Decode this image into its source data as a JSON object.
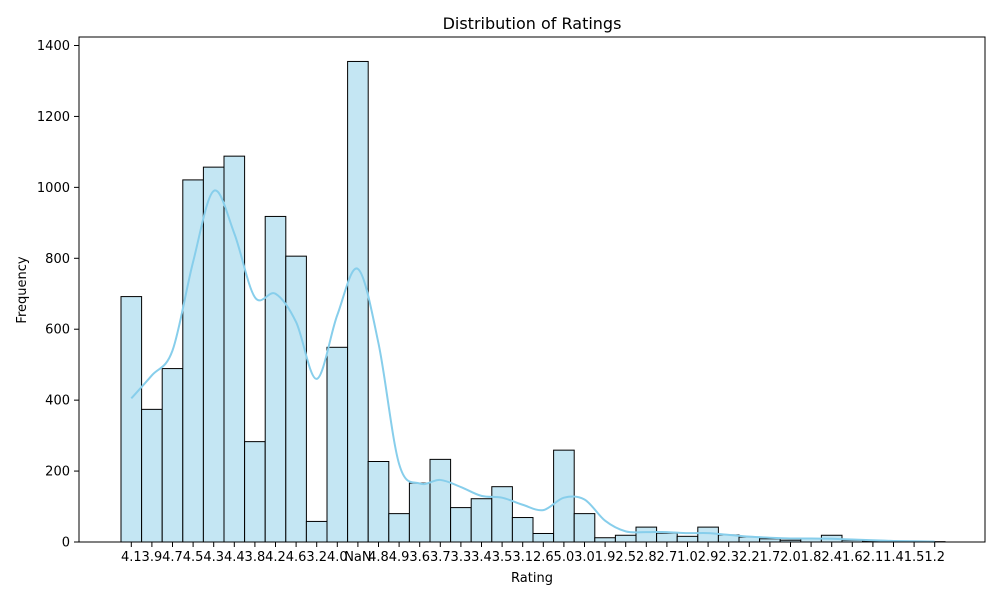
{
  "chart_data": {
    "type": "bar",
    "title": "Distribution of Ratings",
    "xlabel": "Rating",
    "ylabel": "Frequency",
    "ylim": [
      0,
      1420
    ],
    "yticks": [
      0,
      200,
      400,
      600,
      800,
      1000,
      1200,
      1400
    ],
    "categories": [
      "4.1",
      "3.9",
      "4.7",
      "4.5",
      "4.3",
      "4.4",
      "3.8",
      "4.2",
      "4.6",
      "3.2",
      "4.0",
      "NaN",
      "4.8",
      "4.9",
      "3.6",
      "3.7",
      "3.3",
      "3.4",
      "3.5",
      "3.1",
      "2.6",
      "5.0",
      "3.0",
      "1.9",
      "2.5",
      "2.8",
      "2.7",
      "1.0",
      "2.9",
      "2.3",
      "2.2",
      "1.7",
      "2.0",
      "1.8",
      "2.4",
      "1.6",
      "2.1",
      "1.4",
      "1.5",
      "1.2"
    ],
    "values": [
      692,
      374,
      489,
      1021,
      1057,
      1088,
      283,
      918,
      806,
      58,
      549,
      1355,
      227,
      80,
      166,
      233,
      97,
      122,
      156,
      69,
      24,
      259,
      80,
      12,
      19,
      42,
      25,
      16,
      42,
      20,
      14,
      9,
      5,
      9,
      19,
      5,
      3,
      2,
      1,
      1
    ],
    "kde": [
      405,
      470,
      540,
      790,
      990,
      870,
      690,
      700,
      620,
      460,
      640,
      770,
      560,
      220,
      165,
      175,
      155,
      130,
      125,
      105,
      90,
      125,
      120,
      60,
      30,
      28,
      28,
      25,
      25,
      20,
      15,
      12,
      10,
      10,
      9,
      7,
      5,
      3,
      2,
      1
    ],
    "colors": {
      "bar_fill": "#c4e6f3",
      "bar_edge": "#000000",
      "kde_line": "#87ceeb"
    },
    "grid": false,
    "legend": "none"
  }
}
